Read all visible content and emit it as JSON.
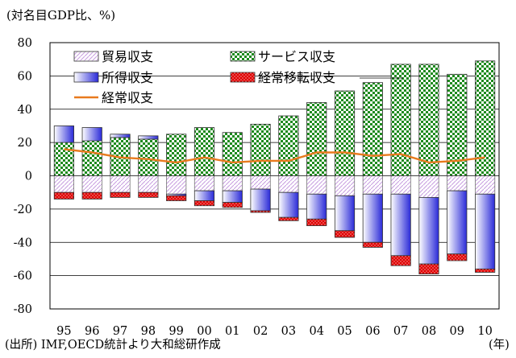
{
  "chart_data": {
    "type": "bar",
    "unit_label": "(対名目GDP比、%)",
    "source": "(出所) IMF,OECD統計より大和総研作成",
    "x_unit": "(年)",
    "categories": [
      "95",
      "96",
      "97",
      "98",
      "99",
      "00",
      "01",
      "02",
      "03",
      "04",
      "05",
      "06",
      "07",
      "08",
      "09",
      "10"
    ],
    "ylim": [
      -80,
      80
    ],
    "yticks": [
      "80",
      "60",
      "40",
      "20",
      "0",
      "-20",
      "-40",
      "-60",
      "-80"
    ],
    "grid": "horizontal",
    "legend_position": "top-left",
    "series": [
      {
        "name": "貿易収支",
        "kind": "bar",
        "values": [
          -10,
          -10,
          -10,
          -10,
          -11,
          -9,
          -9,
          -8,
          -10,
          -11,
          -12,
          -11,
          -11,
          -13,
          -9,
          -11
        ]
      },
      {
        "name": "サービス収支",
        "kind": "bar",
        "values": [
          20,
          21,
          23,
          22,
          25,
          29,
          26,
          31,
          36,
          44,
          51,
          56,
          67,
          67,
          61,
          69
        ]
      },
      {
        "name": "所得収支",
        "kind": "bar",
        "values": [
          10,
          8,
          2,
          2,
          -1,
          -6,
          -7,
          -13,
          -15,
          -15,
          -21,
          -29,
          -37,
          -40,
          -38,
          -45
        ]
      },
      {
        "name": "経常移転収支",
        "kind": "bar",
        "values": [
          -4,
          -4,
          -3,
          -3,
          -3,
          -3,
          -3,
          -1,
          -2,
          -4,
          -4,
          -3,
          -6,
          -6,
          -4,
          -2
        ]
      },
      {
        "name": "経常収支",
        "kind": "line",
        "values": [
          16,
          14,
          11,
          10,
          8,
          11,
          8,
          9,
          9,
          14,
          14,
          12,
          13,
          8,
          9,
          11
        ]
      }
    ],
    "colors": {
      "trade": "#c8a0e0",
      "services": "#1e8a1e",
      "income": "#2a2ad8",
      "transfer": "#e00000",
      "current_line": "#e87a1e"
    }
  }
}
